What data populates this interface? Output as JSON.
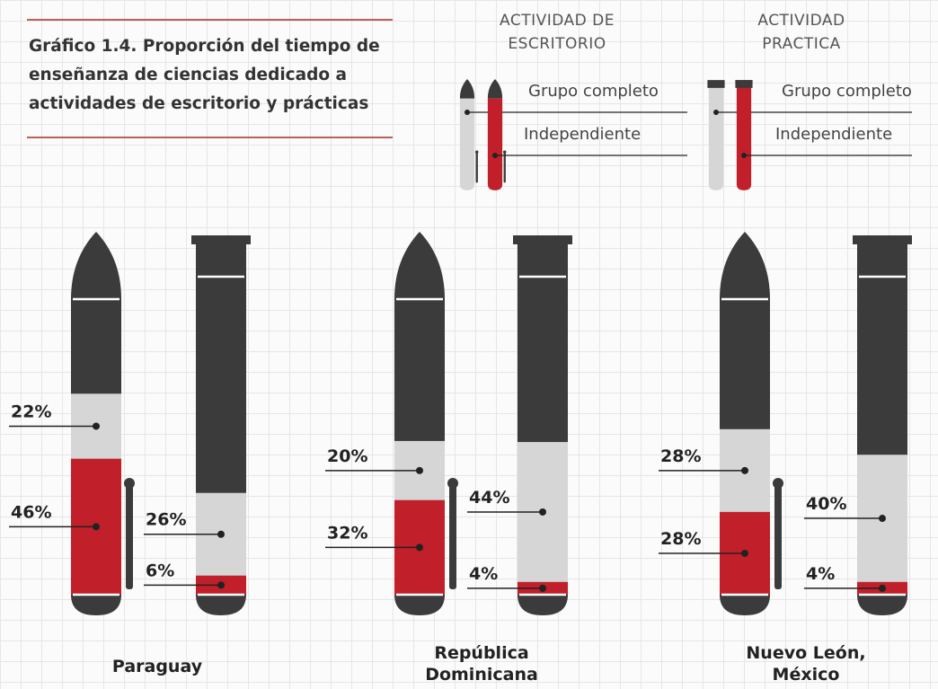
{
  "chart_data": {
    "type": "pictogram",
    "title": "Gráfico 1.4. Proporción del tiempo de enseñanza de ciencias dedicado a actividades de escritorio y prácticas",
    "categories": [
      "Paraguay",
      "República Dominicana",
      "Nuevo León, México"
    ],
    "ylim": [
      0,
      100
    ],
    "groups": [
      {
        "title": "ACTIVIDAD DE ESCRITORIO",
        "series": [
          {
            "name": "Grupo completo",
            "color": "#d6d6d6",
            "values": [
              22,
              20,
              28
            ],
            "value_labels": [
              "22%",
              "20%",
              "28%"
            ]
          },
          {
            "name": "Independiente",
            "color": "#c1202a",
            "values": [
              46,
              32,
              28
            ],
            "value_labels": [
              "46%",
              "32%",
              "28%"
            ]
          }
        ]
      },
      {
        "title": "ACTIVIDAD PRACTICA",
        "series": [
          {
            "name": "Grupo completo",
            "color": "#d6d6d6",
            "values": [
              26,
              44,
              40
            ],
            "value_labels": [
              "26%",
              "44%",
              "40%"
            ]
          },
          {
            "name": "Independiente",
            "color": "#c1202a",
            "values": [
              6,
              4,
              4
            ],
            "value_labels": [
              "6%",
              "4%",
              "4%"
            ]
          }
        ]
      }
    ]
  }
}
